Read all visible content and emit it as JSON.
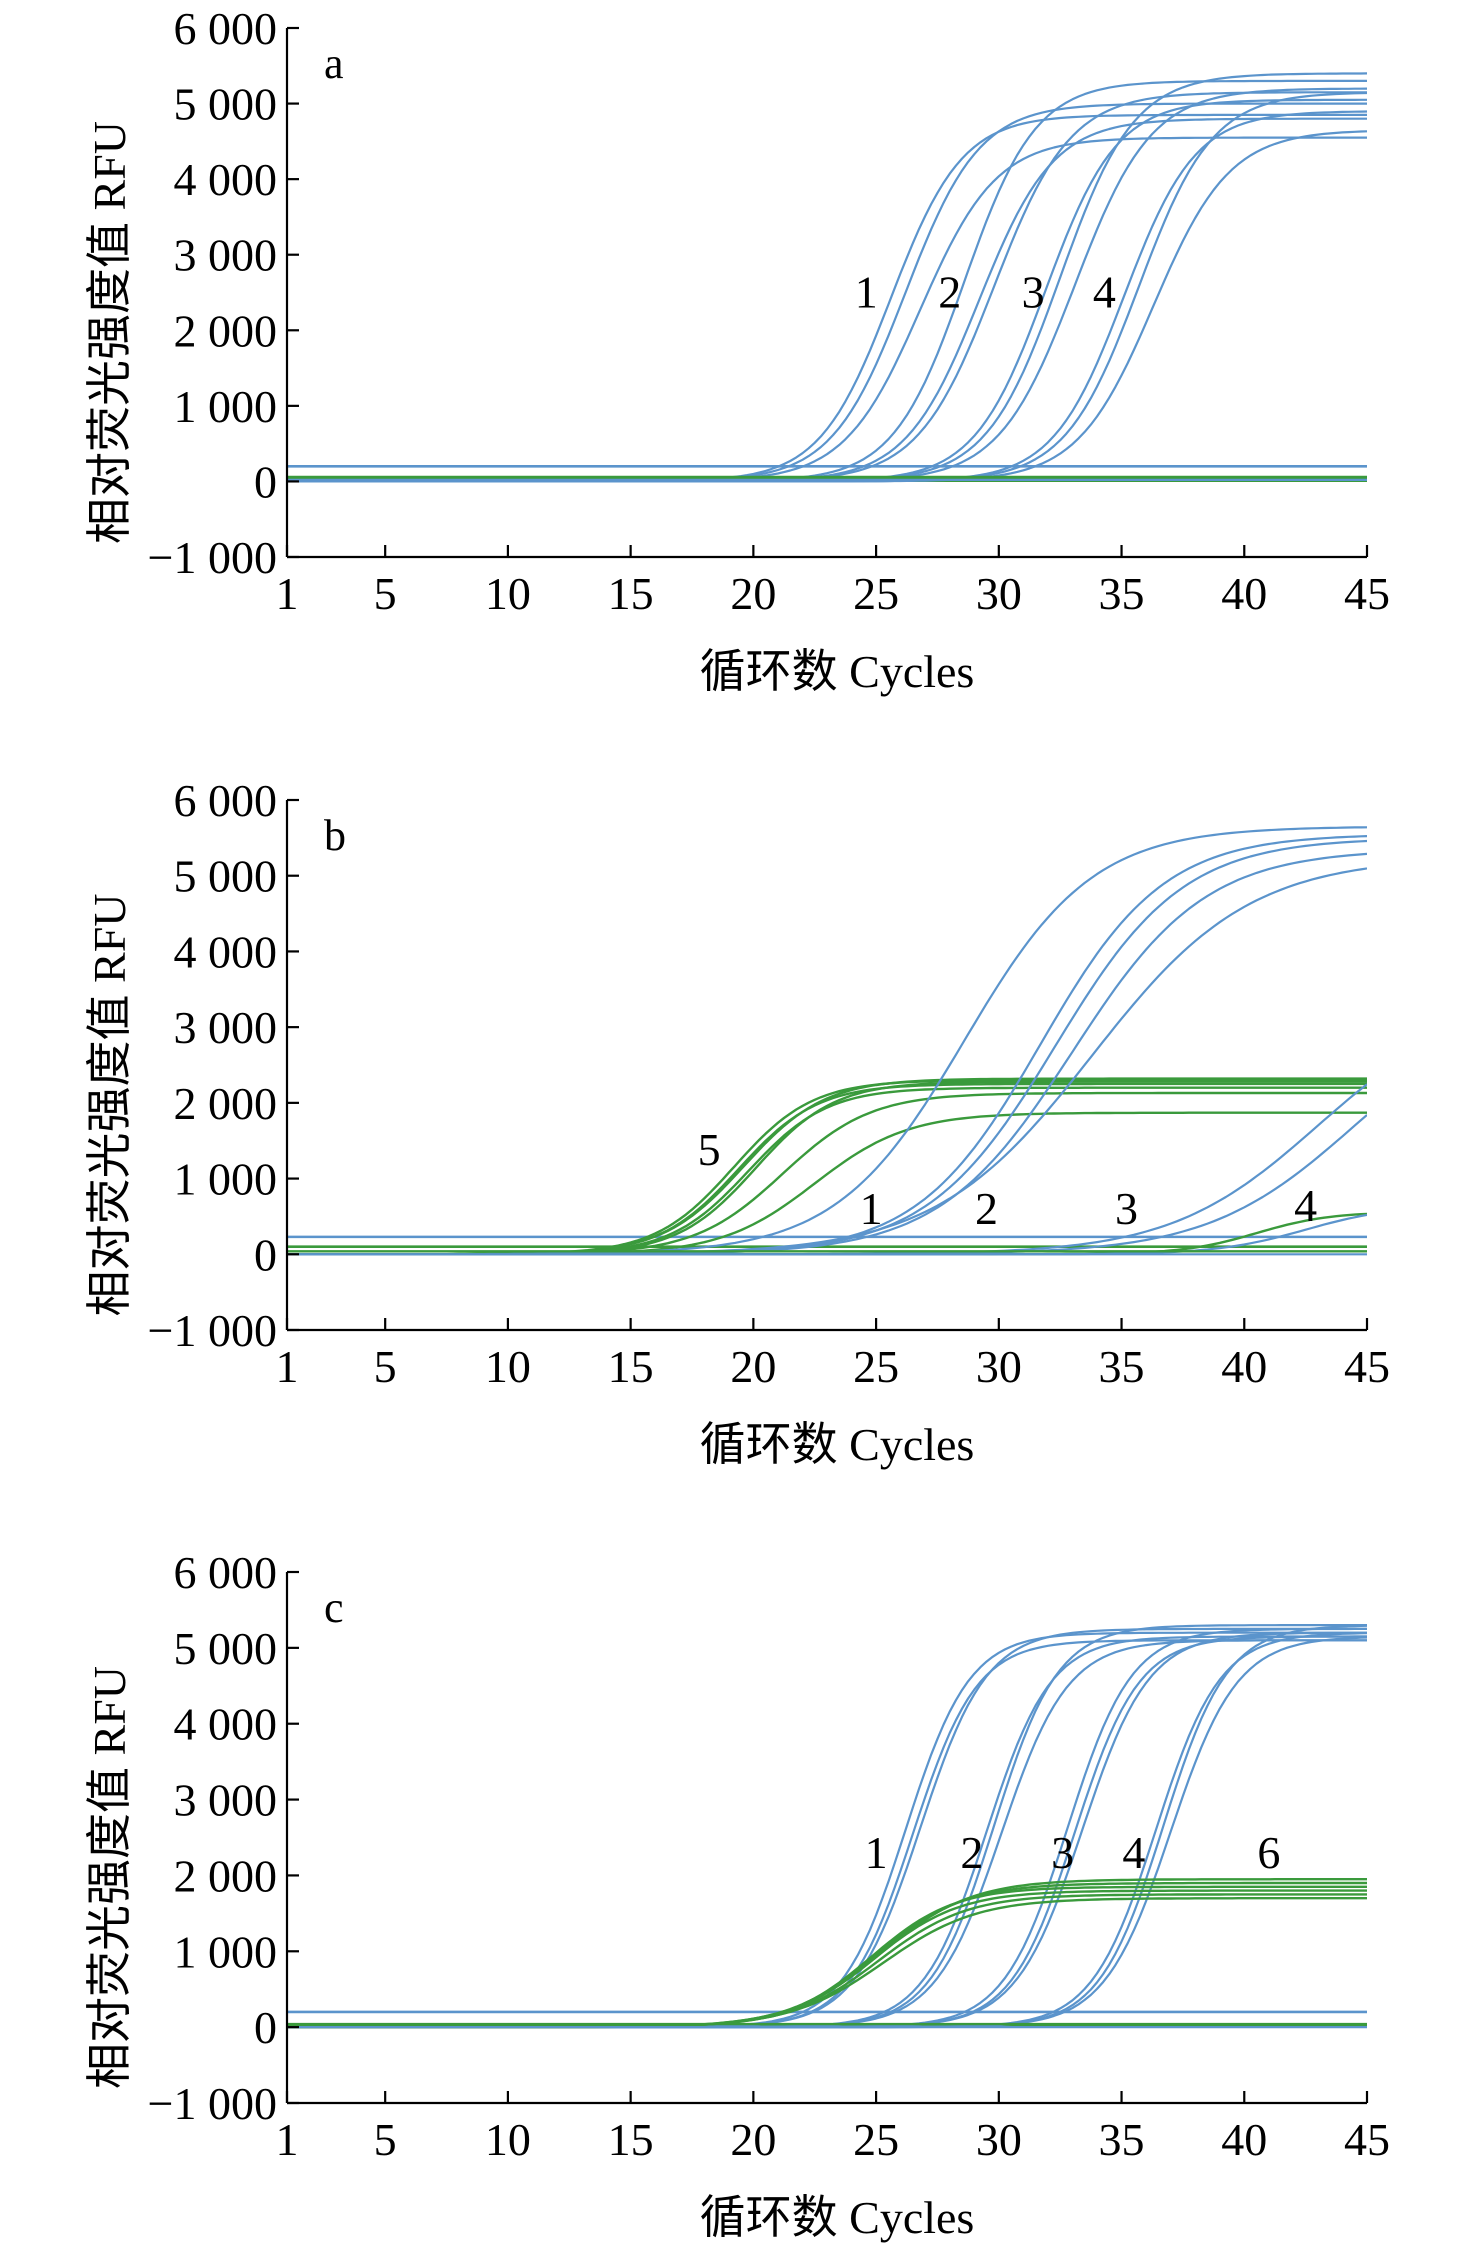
{
  "colors": {
    "blue": "#5b94cc",
    "green": "#3a9a3c",
    "axis": "#000000"
  },
  "chart_data": [
    {
      "type": "line",
      "panel_label": "a",
      "xlabel": "循环数 Cycles",
      "ylabel": "相对荧光强度值 RFU",
      "xlim": [
        1,
        45
      ],
      "ylim": [
        -1000,
        6000
      ],
      "x_ticks": [
        1,
        5,
        10,
        15,
        20,
        25,
        30,
        35,
        40,
        45
      ],
      "x_tick_labels": [
        "1",
        "5",
        "10",
        "15",
        "20",
        "25",
        "30",
        "35",
        "40",
        "45"
      ],
      "y_ticks": [
        -1000,
        0,
        1000,
        2000,
        3000,
        4000,
        5000,
        6000
      ],
      "y_tick_labels": [
        "−1 000",
        "0",
        "1 000",
        "2 000",
        "3 000",
        "4 000",
        "5 000",
        "6 000"
      ],
      "threshold_lines": [
        {
          "y": 200,
          "color": "blue"
        },
        {
          "y": 10,
          "color": "green"
        }
      ],
      "series": [
        {
          "color": "blue",
          "midpoint": 25.6,
          "slope": 1.45,
          "max": 4850,
          "base": 0
        },
        {
          "color": "blue",
          "midpoint": 26.2,
          "slope": 1.5,
          "max": 5000,
          "base": 0
        },
        {
          "color": "blue",
          "midpoint": 26.8,
          "slope": 1.55,
          "max": 4550,
          "base": 0
        },
        {
          "color": "blue",
          "midpoint": 28.6,
          "slope": 1.45,
          "max": 5300,
          "base": 0
        },
        {
          "color": "blue",
          "midpoint": 29.2,
          "slope": 1.5,
          "max": 4800,
          "base": 0
        },
        {
          "color": "blue",
          "midpoint": 29.8,
          "slope": 1.55,
          "max": 5150,
          "base": 0
        },
        {
          "color": "blue",
          "midpoint": 31.9,
          "slope": 1.45,
          "max": 5050,
          "base": 0
        },
        {
          "color": "blue",
          "midpoint": 32.5,
          "slope": 1.5,
          "max": 5400,
          "base": 0
        },
        {
          "color": "blue",
          "midpoint": 33.1,
          "slope": 1.55,
          "max": 5200,
          "base": 0
        },
        {
          "color": "blue",
          "midpoint": 35.1,
          "slope": 1.45,
          "max": 4900,
          "base": 0
        },
        {
          "color": "blue",
          "midpoint": 35.7,
          "slope": 1.5,
          "max": 5150,
          "base": 0
        },
        {
          "color": "blue",
          "midpoint": 36.3,
          "slope": 1.55,
          "max": 4650,
          "base": 0
        },
        {
          "color": "green",
          "midpoint": 100,
          "slope": 2,
          "max": 0,
          "base": 60
        },
        {
          "color": "green",
          "midpoint": 100,
          "slope": 2,
          "max": 0,
          "base": 35
        },
        {
          "color": "blue",
          "midpoint": 100,
          "slope": 2,
          "max": 0,
          "base": 20
        }
      ],
      "curve_labels": [
        {
          "text": "1",
          "x": 24.6,
          "y": 2300
        },
        {
          "text": "2",
          "x": 28.0,
          "y": 2300
        },
        {
          "text": "3",
          "x": 31.4,
          "y": 2300
        },
        {
          "text": "4",
          "x": 34.3,
          "y": 2300
        }
      ]
    },
    {
      "type": "line",
      "panel_label": "b",
      "xlabel": "循环数 Cycles",
      "ylabel": "相对荧光强度值 RFU",
      "xlim": [
        1,
        45
      ],
      "ylim": [
        -1000,
        6000
      ],
      "x_ticks": [
        1,
        5,
        10,
        15,
        20,
        25,
        30,
        35,
        40,
        45
      ],
      "x_tick_labels": [
        "1",
        "5",
        "10",
        "15",
        "20",
        "25",
        "30",
        "35",
        "40",
        "45"
      ],
      "y_ticks": [
        -1000,
        0,
        1000,
        2000,
        3000,
        4000,
        5000,
        6000
      ],
      "y_tick_labels": [
        "−1 000",
        "0",
        "1 000",
        "2 000",
        "3 000",
        "4 000",
        "5 000",
        "6 000"
      ],
      "threshold_lines": [
        {
          "y": 230,
          "color": "blue"
        },
        {
          "y": 100,
          "color": "green"
        }
      ],
      "series": [
        {
          "color": "green",
          "midpoint": 19.2,
          "slope": 1.6,
          "max": 2300,
          "base": 0
        },
        {
          "color": "green",
          "midpoint": 19.4,
          "slope": 1.6,
          "max": 2250,
          "base": 0
        },
        {
          "color": "green",
          "midpoint": 19.6,
          "slope": 1.65,
          "max": 2320,
          "base": 0
        },
        {
          "color": "green",
          "midpoint": 19.8,
          "slope": 1.6,
          "max": 2200,
          "base": 0
        },
        {
          "color": "green",
          "midpoint": 20.1,
          "slope": 1.6,
          "max": 2280,
          "base": 0
        },
        {
          "color": "green",
          "midpoint": 21.2,
          "slope": 1.8,
          "max": 2130,
          "base": 0
        },
        {
          "color": "green",
          "midpoint": 22.5,
          "slope": 1.9,
          "max": 1870,
          "base": 0
        },
        {
          "color": "blue",
          "midpoint": 28.6,
          "slope": 2.6,
          "max": 5650,
          "base": 0
        },
        {
          "color": "blue",
          "midpoint": 31.7,
          "slope": 2.5,
          "max": 5550,
          "base": 0
        },
        {
          "color": "blue",
          "midpoint": 32.3,
          "slope": 2.6,
          "max": 5500,
          "base": 0
        },
        {
          "color": "blue",
          "midpoint": 33.0,
          "slope": 2.7,
          "max": 5350,
          "base": 0
        },
        {
          "color": "blue",
          "midpoint": 33.8,
          "slope": 3.2,
          "max": 5250,
          "base": 0
        },
        {
          "color": "blue",
          "midpoint": 43.0,
          "slope": 3.0,
          "max": 3400,
          "base": 0
        },
        {
          "color": "blue",
          "midpoint": 44.5,
          "slope": 3.0,
          "max": 3400,
          "base": 0
        },
        {
          "color": "green",
          "midpoint": 40.5,
          "slope": 1.5,
          "max": 560,
          "base": 0
        },
        {
          "color": "blue",
          "midpoint": 42.5,
          "slope": 1.8,
          "max": 650,
          "base": 0
        },
        {
          "color": "blue",
          "midpoint": 100,
          "slope": 2,
          "max": 0,
          "base": 0
        },
        {
          "color": "green",
          "midpoint": 100,
          "slope": 2,
          "max": 0,
          "base": 40
        }
      ],
      "curve_labels": [
        {
          "text": "5",
          "x": 18.2,
          "y": 1180
        },
        {
          "text": "1",
          "x": 24.8,
          "y": 400
        },
        {
          "text": "2",
          "x": 29.5,
          "y": 400
        },
        {
          "text": "3",
          "x": 35.2,
          "y": 400
        },
        {
          "text": "4",
          "x": 42.5,
          "y": 440
        }
      ]
    },
    {
      "type": "line",
      "panel_label": "c",
      "xlabel": "循环数 Cycles",
      "ylabel": "相对荧光强度值 RFU",
      "xlim": [
        1,
        45
      ],
      "ylim": [
        -1000,
        6000
      ],
      "x_ticks": [
        1,
        5,
        10,
        15,
        20,
        25,
        30,
        35,
        40,
        45
      ],
      "x_tick_labels": [
        "1",
        "5",
        "10",
        "15",
        "20",
        "25",
        "30",
        "35",
        "40",
        "45"
      ],
      "y_ticks": [
        -1000,
        0,
        1000,
        2000,
        3000,
        4000,
        5000,
        6000
      ],
      "y_tick_labels": [
        "−1 000",
        "0",
        "1 000",
        "2 000",
        "3 000",
        "4 000",
        "5 000",
        "6 000"
      ],
      "threshold_lines": [
        {
          "y": 200,
          "color": "blue"
        },
        {
          "y": 20,
          "color": "green"
        }
      ],
      "series": [
        {
          "color": "blue",
          "midpoint": 26.2,
          "slope": 1.3,
          "max": 5200,
          "base": 0
        },
        {
          "color": "blue",
          "midpoint": 26.5,
          "slope": 1.3,
          "max": 5100,
          "base": 0
        },
        {
          "color": "blue",
          "midpoint": 26.8,
          "slope": 1.35,
          "max": 5250,
          "base": 0
        },
        {
          "color": "blue",
          "midpoint": 29.5,
          "slope": 1.3,
          "max": 5150,
          "base": 0
        },
        {
          "color": "blue",
          "midpoint": 29.8,
          "slope": 1.3,
          "max": 5300,
          "base": 0
        },
        {
          "color": "blue",
          "midpoint": 30.1,
          "slope": 1.35,
          "max": 5100,
          "base": 0
        },
        {
          "color": "blue",
          "midpoint": 32.8,
          "slope": 1.3,
          "max": 5250,
          "base": 0
        },
        {
          "color": "blue",
          "midpoint": 33.1,
          "slope": 1.3,
          "max": 5150,
          "base": 0
        },
        {
          "color": "blue",
          "midpoint": 33.4,
          "slope": 1.35,
          "max": 5200,
          "base": 0
        },
        {
          "color": "blue",
          "midpoint": 36.4,
          "slope": 1.3,
          "max": 5200,
          "base": 0
        },
        {
          "color": "blue",
          "midpoint": 36.7,
          "slope": 1.3,
          "max": 5300,
          "base": 0
        },
        {
          "color": "blue",
          "midpoint": 37.0,
          "slope": 1.35,
          "max": 5150,
          "base": 0
        },
        {
          "color": "green",
          "midpoint": 24.8,
          "slope": 1.7,
          "max": 1850,
          "base": 0
        },
        {
          "color": "green",
          "midpoint": 24.9,
          "slope": 1.75,
          "max": 1800,
          "base": 0
        },
        {
          "color": "green",
          "midpoint": 25.0,
          "slope": 1.8,
          "max": 1900,
          "base": 0
        },
        {
          "color": "green",
          "midpoint": 25.1,
          "slope": 1.8,
          "max": 1750,
          "base": 0
        },
        {
          "color": "green",
          "midpoint": 25.2,
          "slope": 1.85,
          "max": 1950,
          "base": 0
        },
        {
          "color": "green",
          "midpoint": 25.3,
          "slope": 1.9,
          "max": 1700,
          "base": 0
        },
        {
          "color": "blue",
          "midpoint": 100,
          "slope": 2,
          "max": 0,
          "base": 0
        },
        {
          "color": "green",
          "midpoint": 100,
          "slope": 2,
          "max": 0,
          "base": 40
        }
      ],
      "curve_labels": [
        {
          "text": "1",
          "x": 25.0,
          "y": 2100
        },
        {
          "text": "2",
          "x": 28.9,
          "y": 2100
        },
        {
          "text": "3",
          "x": 32.6,
          "y": 2100
        },
        {
          "text": "4",
          "x": 35.5,
          "y": 2100
        },
        {
          "text": "6",
          "x": 41.0,
          "y": 2100
        }
      ]
    }
  ]
}
